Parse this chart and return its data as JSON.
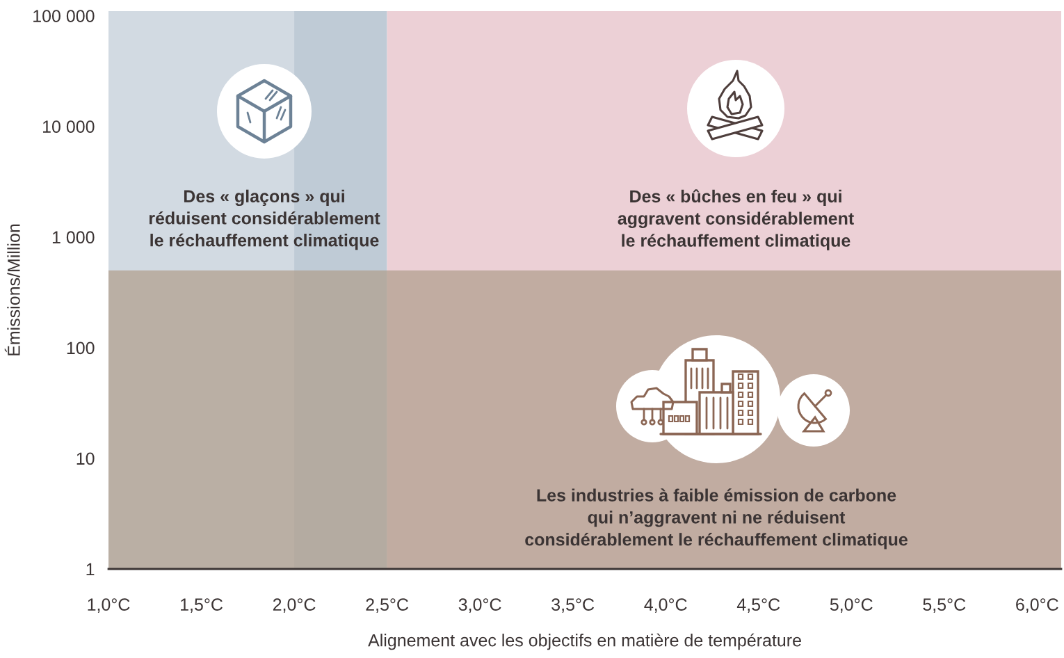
{
  "chart_data": {
    "type": "scatter",
    "xlabel": "Alignement avec les objectifs en matière de température",
    "ylabel": "Émissions/Million",
    "log": "y",
    "xlim": [
      1.0,
      6.13
    ],
    "ylim": [
      1,
      110000
    ],
    "xticks": [
      {
        "value": 1.0,
        "label": "1,0°C"
      },
      {
        "value": 1.5,
        "label": "1,5°C"
      },
      {
        "value": 2.0,
        "label": "2,0°C"
      },
      {
        "value": 2.5,
        "label": "2,5°C"
      },
      {
        "value": 3.0,
        "label": "3,0°C"
      },
      {
        "value": 3.5,
        "label": "3,5°C"
      },
      {
        "value": 4.0,
        "label": "4,0°C"
      },
      {
        "value": 4.5,
        "label": "4,5°C"
      },
      {
        "value": 5.0,
        "label": "5,0°C"
      },
      {
        "value": 5.5,
        "label": "5,5°C"
      },
      {
        "value": 6.0,
        "label": "6,0°C"
      }
    ],
    "yticks": [
      {
        "value": 1,
        "label": "1"
      },
      {
        "value": 10,
        "label": "10"
      },
      {
        "value": 100,
        "label": "100"
      },
      {
        "value": 1000,
        "label": "1 000"
      },
      {
        "value": 10000,
        "label": "10 000"
      },
      {
        "value": 100000,
        "label": "100 000"
      }
    ],
    "bands": [
      {
        "axis": "x",
        "from": 1.0,
        "to": 2.0,
        "color": "#d2dae2"
      },
      {
        "axis": "x",
        "from": 2.0,
        "to": 2.5,
        "color": "#bfcbd6"
      },
      {
        "axis": "x",
        "from": 2.5,
        "to": 6.13,
        "color": "#ecd0d6"
      },
      {
        "axis": "y",
        "from": 1,
        "to": 500,
        "color": "#af9d8a"
      }
    ],
    "annotations": [
      "Des « glaçons » qui\nréduisent considérablement\nle réchauffement climatique",
      "Des « bûches en feu » qui\naggravent considérablement\nle réchauffement climatique",
      "Les industries à faible émission de carbone\nqui n’aggravent ni ne réduisent\nconsidérablement le réchauffement climatique"
    ]
  }
}
